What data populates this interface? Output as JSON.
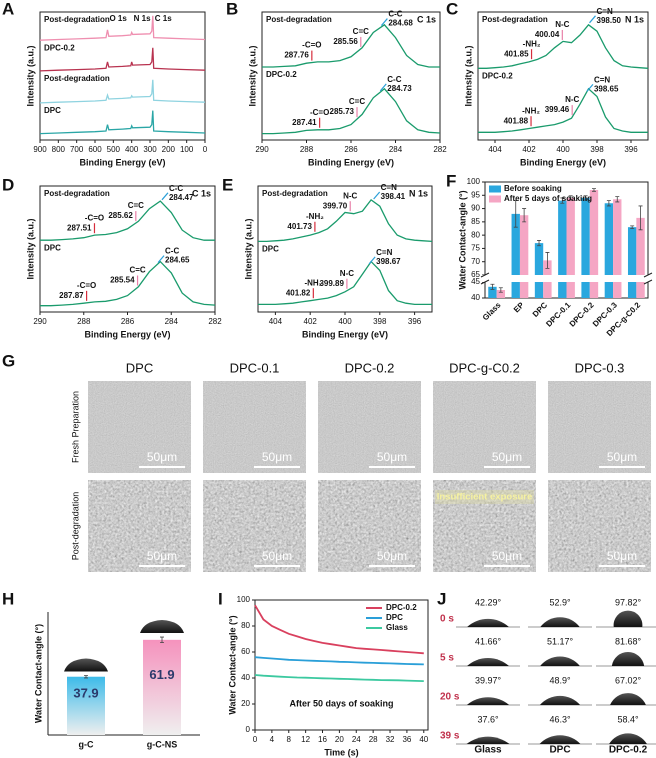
{
  "chart_data": [
    {
      "panel": "A",
      "type": "line",
      "xlabel": "Binding Energy (eV)",
      "ylabel": "Intensity (a.u.)",
      "x": [
        900,
        800,
        700,
        600,
        540,
        532,
        525,
        450,
        405,
        400,
        395,
        300,
        290,
        285,
        280,
        200,
        100,
        0
      ],
      "xlim": [
        900,
        0
      ],
      "xticks": [
        900,
        800,
        700,
        600,
        500,
        400,
        300,
        200,
        100,
        0
      ],
      "ylim": [
        0,
        100
      ],
      "annotations": [
        {
          "label": "O 1s",
          "value": 532,
          "color": "#e37fa3"
        },
        {
          "label": "N 1s",
          "value": 400,
          "color": "#e37fa3"
        },
        {
          "label": "C 1s",
          "value": 285,
          "color": "#e37fa3"
        }
      ],
      "series": [
        {
          "name": "Post-degradation",
          "color": "#ef8fb0",
          "values": [
            78,
            78.5,
            79,
            79.5,
            80,
            86,
            81,
            81.5,
            82,
            84,
            82.5,
            83,
            85,
            97,
            80,
            79.5,
            79,
            78.5
          ]
        },
        {
          "name": "DPC-0.2",
          "color": "#b8324f",
          "values": [
            54,
            54.5,
            55,
            55.5,
            56,
            61,
            57,
            57.5,
            58,
            61,
            58.5,
            59,
            61,
            72,
            56,
            55.5,
            55,
            54.5
          ]
        },
        {
          "name": "Post-degradation",
          "color": "#8fd3e0",
          "values": [
            29,
            29.5,
            30,
            30.5,
            31,
            35,
            32,
            32.5,
            33,
            34.5,
            33.5,
            34,
            36,
            47,
            31,
            30.5,
            30,
            29.5
          ]
        },
        {
          "name": "DPC",
          "color": "#2aa6a6",
          "values": [
            5,
            5.5,
            6,
            6.5,
            7,
            12,
            8,
            8.5,
            9,
            11,
            9.5,
            10,
            12,
            23,
            7,
            6.5,
            6,
            5.5
          ]
        }
      ]
    },
    {
      "panel": "B",
      "type": "line",
      "title": "C 1s",
      "xlabel": "Binding Energy (eV)",
      "ylabel": "Intensity (a.u.)",
      "x": [
        290,
        289.5,
        289,
        288.5,
        288,
        287.5,
        287,
        286.5,
        286,
        285.5,
        285,
        284.5,
        284,
        283.5,
        283,
        282.5,
        282
      ],
      "xlim": [
        290,
        282
      ],
      "xticks": [
        290,
        288,
        286,
        284,
        282
      ],
      "ylim": [
        0,
        100
      ],
      "series_label_color": "#111111",
      "series": [
        {
          "name": "Post-degradation",
          "color": "#1a9b6c",
          "values": [
            57,
            57,
            57.5,
            58,
            60,
            61,
            61,
            62,
            65,
            72,
            84,
            90,
            80,
            66,
            59,
            57,
            57
          ],
          "annotations": [
            {
              "label": "-C=O",
              "value": 287.76,
              "color": "#d62d3c"
            },
            {
              "label": "C=C",
              "value": 285.56,
              "color": "#e880a8"
            },
            {
              "label": "C-C",
              "value": 284.68,
              "color": "#2a9fd8"
            }
          ]
        },
        {
          "name": "DPC-0.2",
          "color": "#1a9b6c",
          "values": [
            5,
            5,
            5.5,
            6,
            7.5,
            8,
            8,
            9,
            12,
            20,
            33,
            40,
            30,
            15,
            8,
            6,
            5.5
          ],
          "annotations": [
            {
              "label": "-C=O",
              "value": 287.41,
              "color": "#d62d3c"
            },
            {
              "label": "C=C",
              "value": 285.73,
              "color": "#e880a8"
            },
            {
              "label": "C-C",
              "value": 284.73,
              "color": "#2a9fd8"
            }
          ]
        }
      ]
    },
    {
      "panel": "C",
      "type": "line",
      "title": "N 1s",
      "xlabel": "Binding Energy (eV)",
      "ylabel": "Intensity (a.u.)",
      "x": [
        405,
        404.5,
        404,
        403.5,
        403,
        402.5,
        402,
        401.5,
        401,
        400.5,
        400,
        399.5,
        399,
        398.5,
        398,
        397.5,
        397,
        396.5,
        396,
        395.5,
        395
      ],
      "xlim": [
        405,
        395
      ],
      "xticks": [
        404,
        402,
        400,
        398,
        396
      ],
      "ylim": [
        0,
        100
      ],
      "series_label_color": "#111111",
      "series": [
        {
          "name": "Post-degradation",
          "color": "#1a9b6c",
          "values": [
            56,
            56,
            56.5,
            57,
            58,
            59.5,
            61,
            63,
            66,
            72,
            77,
            76,
            82,
            90,
            85,
            72,
            62,
            58,
            57,
            56.5,
            56
          ],
          "annotations": [
            {
              "label": "-NH₂",
              "value": 401.85,
              "color": "#d62d3c"
            },
            {
              "label": "N-C",
              "value": 400.04,
              "color": "#e880a8"
            },
            {
              "label": "C=N",
              "value": 398.5,
              "value_label": "398.50",
              "color": "#2a9fd8"
            }
          ]
        },
        {
          "name": "DPC-0.2",
          "color": "#1a9b6c",
          "values": [
            6,
            6,
            6,
            6.5,
            7,
            8,
            9,
            10,
            11,
            12,
            14,
            17,
            28,
            40,
            34,
            18,
            9,
            7,
            6,
            6,
            6
          ],
          "annotations": [
            {
              "label": "-NH₂",
              "value": 401.88,
              "color": "#d62d3c"
            },
            {
              "label": "N-C",
              "value": 399.46,
              "color": "#e880a8"
            },
            {
              "label": "C=N",
              "value": 398.65,
              "color": "#2a9fd8"
            }
          ]
        }
      ]
    },
    {
      "panel": "D",
      "type": "line",
      "title": "C 1s",
      "xlabel": "Binding Energy (eV)",
      "ylabel": "Intensity (a.u.)",
      "x": [
        290,
        289.5,
        289,
        288.5,
        288,
        287.5,
        287,
        286.5,
        286,
        285.5,
        285,
        284.5,
        284,
        283.5,
        283,
        282.5,
        282
      ],
      "xlim": [
        290,
        282
      ],
      "xticks": [
        290,
        288,
        286,
        284,
        282
      ],
      "ylim": [
        0,
        100
      ],
      "series_label_color": "#111111",
      "series": [
        {
          "name": "Post-degradation",
          "color": "#1a9b6c",
          "values": [
            57,
            57,
            57.5,
            58,
            59,
            61,
            61.5,
            63,
            66,
            72,
            82,
            88,
            79,
            65,
            59,
            57,
            57
          ],
          "annotations": [
            {
              "label": "-C=O",
              "value": 287.51,
              "color": "#d62d3c"
            },
            {
              "label": "C=C",
              "value": 285.62,
              "color": "#e880a8"
            },
            {
              "label": "C-C",
              "value": 284.47,
              "color": "#2a9fd8"
            }
          ]
        },
        {
          "name": "DPC",
          "color": "#1a9b6c",
          "values": [
            5,
            5,
            5.5,
            6,
            7,
            8,
            8.5,
            10,
            13,
            20,
            32,
            40,
            31,
            15,
            8,
            6,
            5.5
          ],
          "annotations": [
            {
              "label": "-C=O",
              "value": 287.87,
              "color": "#d62d3c"
            },
            {
              "label": "C=C",
              "value": 285.54,
              "color": "#e880a8"
            },
            {
              "label": "C-C",
              "value": 284.65,
              "color": "#2a9fd8"
            }
          ]
        }
      ]
    },
    {
      "panel": "E",
      "type": "line",
      "title": "N 1s",
      "xlabel": "Binding Energy (eV)",
      "ylabel": "Intensity (a.u.)",
      "x": [
        405,
        404.5,
        404,
        403.5,
        403,
        402.5,
        402,
        401.5,
        401,
        400.5,
        400,
        399.5,
        399,
        398.5,
        398,
        397.5,
        397,
        396.5,
        396,
        395.5,
        395
      ],
      "xlim": [
        405,
        395
      ],
      "xticks": [
        404,
        402,
        400,
        398,
        396
      ],
      "ylim": [
        0,
        100
      ],
      "series_label_color": "#111111",
      "series": [
        {
          "name": "Post-degradation",
          "color": "#1a9b6c",
          "values": [
            56,
            56,
            56.5,
            57,
            58,
            59.5,
            61,
            63,
            66,
            72,
            79,
            78,
            80,
            89,
            84,
            70,
            61,
            58,
            57,
            56.5,
            56
          ],
          "annotations": [
            {
              "label": "-NH₂",
              "value": 401.73,
              "color": "#d62d3c"
            },
            {
              "label": "N-C",
              "value": 399.7,
              "value_label": "399.70",
              "color": "#e880a8"
            },
            {
              "label": "C=N",
              "value": 398.41,
              "color": "#2a9fd8"
            }
          ]
        },
        {
          "name": "DPC",
          "color": "#1a9b6c",
          "values": [
            6,
            6,
            6,
            6.5,
            7,
            8,
            9,
            10,
            11,
            13,
            16,
            20,
            30,
            40,
            33,
            17,
            9,
            7,
            6,
            6,
            6
          ],
          "annotations": [
            {
              "label": "-NH₂",
              "value": 401.82,
              "color": "#d62d3c"
            },
            {
              "label": "N-C",
              "value": 399.89,
              "color": "#e880a8"
            },
            {
              "label": "C=N",
              "value": 398.67,
              "color": "#2a9fd8"
            }
          ]
        }
      ]
    },
    {
      "panel": "F",
      "type": "bar",
      "ylabel": "Water Contact-angle (°)",
      "categories": [
        "Glass",
        "EP",
        "DPC",
        "DPC-0.1",
        "DPC-0.2",
        "DPC-0.3",
        "DPC-g-C0.2"
      ],
      "series": [
        {
          "name": "Before soaking",
          "color": "#2aa7de",
          "values": [
            43.5,
            88,
            77,
            93,
            94,
            92,
            83
          ],
          "errors": [
            0.8,
            5,
            1,
            1,
            0.8,
            1,
            0.5
          ]
        },
        {
          "name": "After  5 days of soaking",
          "color": "#f5a6c4",
          "values": [
            42.5,
            87.5,
            70.5,
            94,
            97,
            93.5,
            86.5
          ],
          "errors": [
            0.7,
            2.5,
            3,
            0.8,
            0.5,
            1,
            4.5
          ]
        }
      ],
      "ylim": [
        40,
        100
      ],
      "ybreak": [
        45,
        65
      ],
      "yticks": [
        40,
        45,
        65,
        70,
        75,
        80,
        85,
        90,
        95,
        100
      ],
      "legend": "top-left"
    },
    {
      "panel": "H",
      "type": "bar",
      "ylabel": "Water Contact-angle (°)",
      "categories": [
        "g-C",
        "g-C-NS"
      ],
      "values": [
        37.9,
        61.9
      ],
      "errors": [
        0.8,
        1.8
      ],
      "colors": [
        "#3dbbe9",
        "#f592bd"
      ],
      "ylim": [
        0,
        80
      ]
    },
    {
      "panel": "I",
      "type": "line",
      "xlabel": "Time (s)",
      "ylabel": "Water Contact-angle (°)",
      "annotation": "After 50 days of soaking",
      "x": [
        0,
        2,
        4,
        6,
        8,
        10,
        12,
        14,
        16,
        18,
        20,
        22,
        24,
        26,
        28,
        30,
        32,
        34,
        36,
        38,
        40
      ],
      "xlim": [
        0,
        41
      ],
      "xticks": [
        0,
        4,
        8,
        12,
        16,
        20,
        24,
        28,
        32,
        36,
        40
      ],
      "ylim": [
        0,
        100
      ],
      "yticks": [
        0,
        20,
        40,
        60,
        80,
        100
      ],
      "legend": "top-right",
      "series": [
        {
          "name": "DPC-0.2",
          "color": "#d9405e",
          "values": [
            96,
            85,
            80,
            77,
            74,
            72,
            70,
            68.5,
            67,
            66,
            65,
            64,
            63,
            62.5,
            62,
            61.5,
            61,
            60.5,
            60,
            59.5,
            59
          ]
        },
        {
          "name": "DPC",
          "color": "#2a9fd8",
          "values": [
            56,
            55.5,
            55,
            54.5,
            54,
            53.8,
            53.5,
            53.2,
            53,
            52.8,
            52.5,
            52.3,
            52,
            51.8,
            51.6,
            51.4,
            51.2,
            51,
            50.8,
            50.6,
            50.5
          ]
        },
        {
          "name": "Glass",
          "color": "#3cc9a0",
          "values": [
            42.3,
            41.8,
            41.4,
            41,
            40.7,
            40.4,
            40.2,
            40,
            39.8,
            39.6,
            39.4,
            39.2,
            39,
            38.8,
            38.6,
            38.4,
            38.3,
            38.2,
            38,
            37.8,
            37.6
          ]
        }
      ]
    }
  ],
  "sem": {
    "panel": "G",
    "columns": [
      "DPC",
      "DPC-0.1",
      "DPC-0.2",
      "DPC-g-C0.2",
      "DPC-0.3"
    ],
    "rows": [
      "Fresh Preparation",
      "Post-degradation"
    ],
    "scale_bar": "50μm",
    "note": "Insufficient exposure"
  },
  "droplets": {
    "panel": "J",
    "rows": [
      "0 s",
      "5 s",
      "20 s",
      "39 s"
    ],
    "columns": [
      "Glass",
      "DPC",
      "DPC-0.2"
    ],
    "angles": [
      [
        42.29,
        52.9,
        97.82
      ],
      [
        41.66,
        51.17,
        81.68
      ],
      [
        39.97,
        48.9,
        67.02
      ],
      [
        37.6,
        46.3,
        58.4
      ]
    ],
    "angle_labels": [
      [
        "42.29°",
        "52.9°",
        "97.82°"
      ],
      [
        "41.66°",
        "51.17°",
        "81.68°"
      ],
      [
        "39.97°",
        "48.9°",
        "67.02°"
      ],
      [
        "37.6°",
        "46.3°",
        "58.4°"
      ]
    ]
  }
}
